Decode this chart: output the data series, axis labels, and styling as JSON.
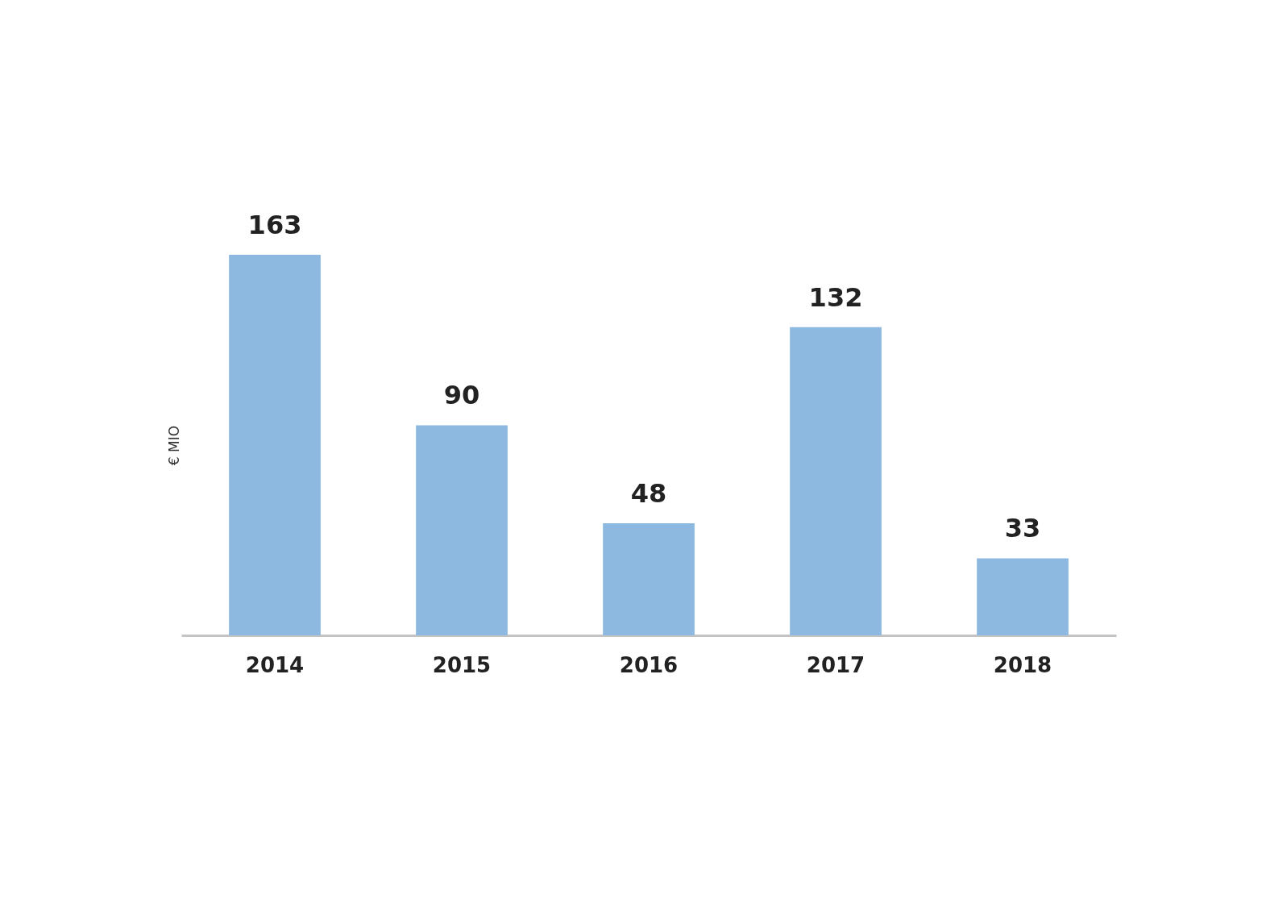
{
  "chart_data": {
    "type": "bar",
    "ylabel": "€ MIO",
    "categories": [
      "2014",
      "2015",
      "2016",
      "2017",
      "2018"
    ],
    "values": [
      163,
      90,
      48,
      132,
      33
    ],
    "color": "#8db8e0",
    "data_labels": true
  }
}
